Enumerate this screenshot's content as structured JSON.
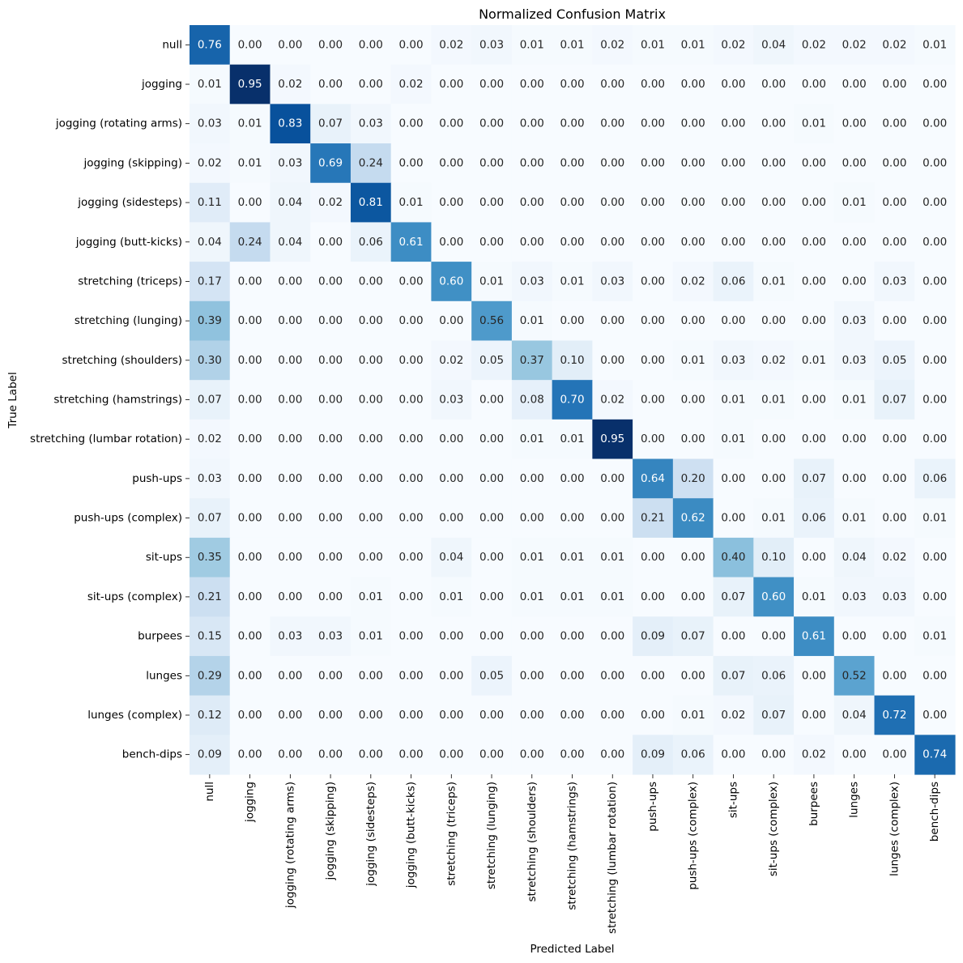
{
  "chart_data": {
    "type": "heatmap",
    "title": "Normalized Confusion Matrix",
    "xlabel": "Predicted Label",
    "ylabel": "True Label",
    "colormap": "Blues",
    "vmin": 0,
    "vmax": 0.95,
    "number_format": "0.00",
    "labels": [
      "null",
      "jogging",
      "jogging (rotating arms)",
      "jogging (skipping)",
      "jogging (sidesteps)",
      "jogging (butt-kicks)",
      "stretching (triceps)",
      "stretching (lunging)",
      "stretching (shoulders)",
      "stretching (hamstrings)",
      "stretching (lumbar rotation)",
      "push-ups",
      "push-ups (complex)",
      "sit-ups",
      "sit-ups (complex)",
      "burpees",
      "lunges",
      "lunges (complex)",
      "bench-dips"
    ],
    "matrix": [
      [
        0.76,
        0.0,
        0.0,
        0.0,
        0.0,
        0.0,
        0.02,
        0.03,
        0.01,
        0.01,
        0.02,
        0.01,
        0.01,
        0.02,
        0.04,
        0.02,
        0.02,
        0.02,
        0.01
      ],
      [
        0.01,
        0.95,
        0.02,
        0.0,
        0.0,
        0.02,
        0.0,
        0.0,
        0.0,
        0.0,
        0.0,
        0.0,
        0.0,
        0.0,
        0.0,
        0.0,
        0.0,
        0.0,
        0.0
      ],
      [
        0.03,
        0.01,
        0.83,
        0.07,
        0.03,
        0.0,
        0.0,
        0.0,
        0.0,
        0.0,
        0.0,
        0.0,
        0.0,
        0.0,
        0.0,
        0.01,
        0.0,
        0.0,
        0.0
      ],
      [
        0.02,
        0.01,
        0.03,
        0.69,
        0.24,
        0.0,
        0.0,
        0.0,
        0.0,
        0.0,
        0.0,
        0.0,
        0.0,
        0.0,
        0.0,
        0.0,
        0.0,
        0.0,
        0.0
      ],
      [
        0.11,
        0.0,
        0.04,
        0.02,
        0.81,
        0.01,
        0.0,
        0.0,
        0.0,
        0.0,
        0.0,
        0.0,
        0.0,
        0.0,
        0.0,
        0.0,
        0.01,
        0.0,
        0.0
      ],
      [
        0.04,
        0.24,
        0.04,
        0.0,
        0.06,
        0.61,
        0.0,
        0.0,
        0.0,
        0.0,
        0.0,
        0.0,
        0.0,
        0.0,
        0.0,
        0.0,
        0.0,
        0.0,
        0.0
      ],
      [
        0.17,
        0.0,
        0.0,
        0.0,
        0.0,
        0.0,
        0.6,
        0.01,
        0.03,
        0.01,
        0.03,
        0.0,
        0.02,
        0.06,
        0.01,
        0.0,
        0.0,
        0.03,
        0.0
      ],
      [
        0.39,
        0.0,
        0.0,
        0.0,
        0.0,
        0.0,
        0.0,
        0.56,
        0.01,
        0.0,
        0.0,
        0.0,
        0.0,
        0.0,
        0.0,
        0.0,
        0.03,
        0.0,
        0.0
      ],
      [
        0.3,
        0.0,
        0.0,
        0.0,
        0.0,
        0.0,
        0.02,
        0.05,
        0.37,
        0.1,
        0.0,
        0.0,
        0.01,
        0.03,
        0.02,
        0.01,
        0.03,
        0.05,
        0.0
      ],
      [
        0.07,
        0.0,
        0.0,
        0.0,
        0.0,
        0.0,
        0.03,
        0.0,
        0.08,
        0.7,
        0.02,
        0.0,
        0.0,
        0.01,
        0.01,
        0.0,
        0.01,
        0.07,
        0.0
      ],
      [
        0.02,
        0.0,
        0.0,
        0.0,
        0.0,
        0.0,
        0.0,
        0.0,
        0.01,
        0.01,
        0.95,
        0.0,
        0.0,
        0.01,
        0.0,
        0.0,
        0.0,
        0.0,
        0.0
      ],
      [
        0.03,
        0.0,
        0.0,
        0.0,
        0.0,
        0.0,
        0.0,
        0.0,
        0.0,
        0.0,
        0.0,
        0.64,
        0.2,
        0.0,
        0.0,
        0.07,
        0.0,
        0.0,
        0.06
      ],
      [
        0.07,
        0.0,
        0.0,
        0.0,
        0.0,
        0.0,
        0.0,
        0.0,
        0.0,
        0.0,
        0.0,
        0.21,
        0.62,
        0.0,
        0.01,
        0.06,
        0.01,
        0.0,
        0.01
      ],
      [
        0.35,
        0.0,
        0.0,
        0.0,
        0.0,
        0.0,
        0.04,
        0.0,
        0.01,
        0.01,
        0.01,
        0.0,
        0.0,
        0.4,
        0.1,
        0.0,
        0.04,
        0.02,
        0.0
      ],
      [
        0.21,
        0.0,
        0.0,
        0.0,
        0.01,
        0.0,
        0.01,
        0.0,
        0.01,
        0.01,
        0.01,
        0.0,
        0.0,
        0.07,
        0.6,
        0.01,
        0.03,
        0.03,
        0.0
      ],
      [
        0.15,
        0.0,
        0.03,
        0.03,
        0.01,
        0.0,
        0.0,
        0.0,
        0.0,
        0.0,
        0.0,
        0.09,
        0.07,
        0.0,
        0.0,
        0.61,
        0.0,
        0.0,
        0.01
      ],
      [
        0.29,
        0.0,
        0.0,
        0.0,
        0.0,
        0.0,
        0.0,
        0.05,
        0.0,
        0.0,
        0.0,
        0.0,
        0.0,
        0.07,
        0.06,
        0.0,
        0.52,
        0.0,
        0.0
      ],
      [
        0.12,
        0.0,
        0.0,
        0.0,
        0.0,
        0.0,
        0.0,
        0.0,
        0.0,
        0.0,
        0.0,
        0.0,
        0.01,
        0.02,
        0.07,
        0.0,
        0.04,
        0.72,
        0.0
      ],
      [
        0.09,
        0.0,
        0.0,
        0.0,
        0.0,
        0.0,
        0.0,
        0.0,
        0.0,
        0.0,
        0.0,
        0.09,
        0.06,
        0.0,
        0.0,
        0.02,
        0.0,
        0.0,
        0.74
      ]
    ]
  }
}
